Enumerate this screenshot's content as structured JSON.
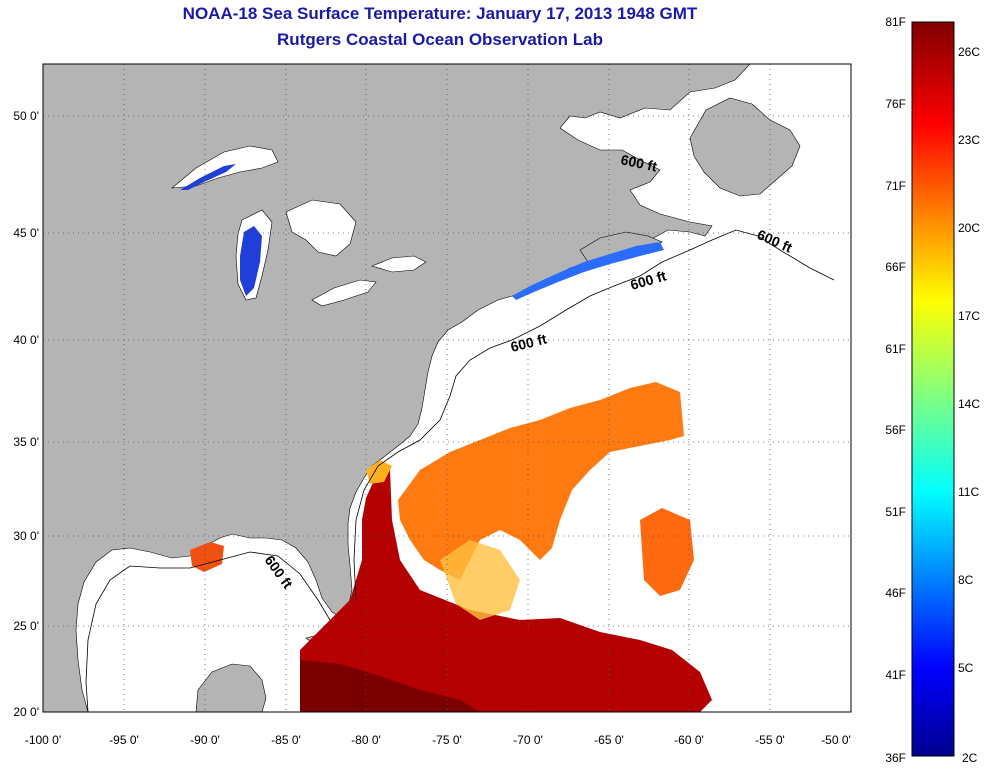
{
  "title_line1": "NOAA-18 Sea Surface Temperature:  January 17, 2013 1948 GMT",
  "title_line2": "Rutgers Coastal Ocean Observation Lab",
  "lat_ticks": [
    "50 0'",
    "45 0'",
    "40 0'",
    "35 0'",
    "30 0'",
    "25 0'",
    "20 0'"
  ],
  "lon_ticks": [
    "-100 0'",
    "-95 0'",
    "-90 0'",
    "-85 0'",
    "-80 0'",
    "-75 0'",
    "-70 0'",
    "-65 0'",
    "-60 0'",
    "-55 0'",
    "-50 0'"
  ],
  "contour_label": "600 ft",
  "colorbar_f": [
    "81F",
    "76F",
    "71F",
    "66F",
    "61F",
    "56F",
    "51F",
    "46F",
    "41F",
    "36F"
  ],
  "colorbar_c": [
    "26C",
    "23C",
    "20C",
    "17C",
    "14C",
    "11C",
    "8C",
    "5C",
    "2C"
  ],
  "colors": {
    "land": "#b4b4b4",
    "title": "#1a1aa8",
    "ocean": "#ffffff"
  }
}
